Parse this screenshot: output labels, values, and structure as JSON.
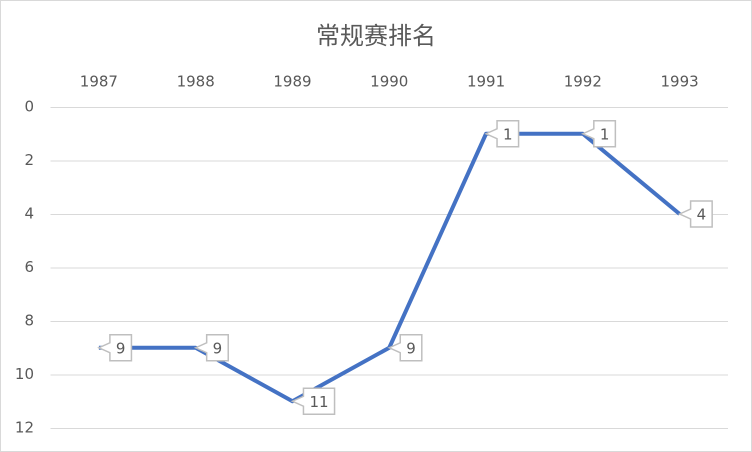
{
  "chart_data": {
    "type": "line",
    "title": "常规赛排名",
    "categories": [
      "1987",
      "1988",
      "1989",
      "1990",
      "1991",
      "1992",
      "1993"
    ],
    "series": [
      {
        "name": "常规赛排名",
        "color": "#4472c4",
        "values": [
          9,
          9,
          11,
          9,
          1,
          1,
          4
        ]
      }
    ],
    "ylim": [
      0,
      12
    ],
    "yticks": [
      0,
      2,
      4,
      6,
      8,
      10,
      12
    ],
    "y_reversed": true,
    "x_axis_position": "top",
    "grid": true,
    "legend": false,
    "data_labels": true
  }
}
